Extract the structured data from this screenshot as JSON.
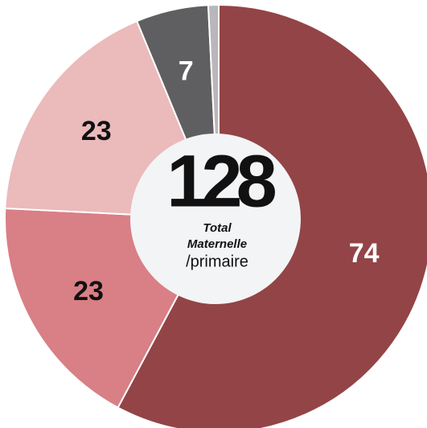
{
  "chart_data": {
    "type": "pie",
    "values": [
      74,
      23,
      23,
      7,
      1
    ],
    "value_labels": [
      "74",
      "23",
      "23",
      "7",
      null
    ],
    "colors": [
      "#934446",
      "#d97f86",
      "#ebbabb",
      "#5f5f61",
      "#b8b8bc"
    ],
    "label_colors": [
      "#ffffff",
      "#111111",
      "#111111",
      "#ffffff",
      null
    ],
    "total": 128,
    "center_lines": [
      "Total",
      "Maternelle",
      "/primaire"
    ]
  }
}
